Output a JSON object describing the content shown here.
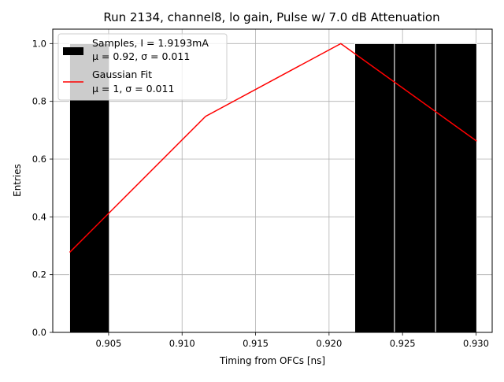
{
  "chart_data": {
    "type": "bar",
    "title": "Run 2134, channel8, lo gain, Pulse w/ 7.0 dB Attenuation",
    "xlabel": "Timing from OFCs [ns]",
    "ylabel": "Entries",
    "xlim": [
      0.9012,
      0.9311
    ],
    "ylim": [
      0,
      1.05
    ],
    "x_ticks": [
      "0.905",
      "0.910",
      "0.915",
      "0.920",
      "0.925",
      "0.930"
    ],
    "x_tick_values": [
      0.905,
      0.91,
      0.915,
      0.92,
      0.925,
      0.93
    ],
    "y_ticks": [
      "0.0",
      "0.2",
      "0.4",
      "0.6",
      "0.8",
      "1.0"
    ],
    "y_tick_values": [
      0.0,
      0.2,
      0.4,
      0.6,
      0.8,
      1.0
    ],
    "grid": true,
    "legend_position": "top-left",
    "histogram": {
      "name": "Samples, I = 1.9193mA",
      "stats": "μ = 0.92, σ = 0.011",
      "color": "#000000",
      "edge_color": "#ffffff",
      "bins": [
        {
          "x0": 0.90235,
          "x1": 0.90505,
          "value": 1.0
        },
        {
          "x0": 0.90505,
          "x1": 0.90775,
          "value": 0.0
        },
        {
          "x0": 0.90775,
          "x1": 0.91045,
          "value": 0.0
        },
        {
          "x0": 0.91045,
          "x1": 0.91315,
          "value": 0.0
        },
        {
          "x0": 0.91315,
          "x1": 0.91585,
          "value": 0.0
        },
        {
          "x0": 0.91585,
          "x1": 0.91855,
          "value": 0.0
        },
        {
          "x0": 0.91855,
          "x1": 0.92175,
          "value": 0.0
        },
        {
          "x0": 0.92175,
          "x1": 0.92445,
          "value": 1.0
        },
        {
          "x0": 0.92445,
          "x1": 0.92725,
          "value": 1.0
        },
        {
          "x0": 0.92725,
          "x1": 0.93005,
          "value": 1.0
        }
      ]
    },
    "fit": {
      "name": "Gaussian Fit",
      "stats": "μ = 1, σ = 0.011",
      "color": "#ff0000",
      "x": [
        0.90235,
        0.9116,
        0.9208,
        0.93005
      ],
      "y": [
        0.277,
        0.748,
        1.0,
        0.662
      ]
    }
  }
}
